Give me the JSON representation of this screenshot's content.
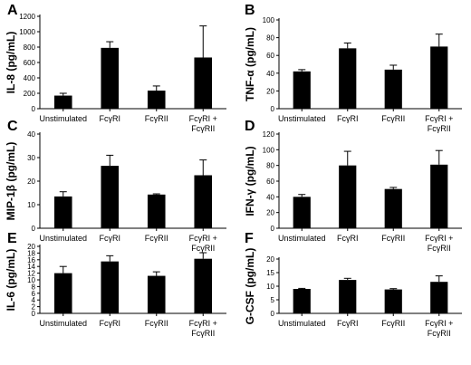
{
  "figure": {
    "panels": [
      "A",
      "B",
      "C",
      "D",
      "E",
      "F"
    ]
  },
  "chart_data": [
    {
      "panel": "A",
      "type": "bar",
      "ylabel": "IL-8 (pg/mL)",
      "ylim": [
        0,
        1200
      ],
      "yticks": [
        0,
        200,
        400,
        600,
        800,
        1000,
        1200
      ],
      "categories": [
        "Unstimulated",
        "FcγRI",
        "FcγRII",
        "FcγRI +\nFcγRII"
      ],
      "values": [
        170,
        790,
        235,
        665
      ],
      "errors": [
        30,
        80,
        60,
        410
      ]
    },
    {
      "panel": "B",
      "type": "bar",
      "ylabel": "TNF-α (pg/mL)",
      "ylim": [
        0,
        100
      ],
      "yticks": [
        0,
        20,
        40,
        60,
        80,
        100
      ],
      "categories": [
        "Unstimulated",
        "FcγRI",
        "FcγRII",
        "FcγRI +\nFcγRII"
      ],
      "values": [
        42,
        68,
        44,
        70
      ],
      "errors": [
        2,
        6,
        5,
        14
      ]
    },
    {
      "panel": "C",
      "type": "bar",
      "ylabel": "MIP-1β (pg/mL)",
      "ylim": [
        0,
        40
      ],
      "yticks": [
        0,
        10,
        20,
        30,
        40
      ],
      "categories": [
        "Unstimulated",
        "FcγRI",
        "FcγRII",
        "FcγRI +\nFcγRII"
      ],
      "values": [
        13.5,
        26.5,
        14.3,
        22.5
      ],
      "errors": [
        2,
        4.5,
        0.3,
        6.5
      ]
    },
    {
      "panel": "D",
      "type": "bar",
      "ylabel": "IFN-γ (pg/mL)",
      "ylim": [
        0,
        120
      ],
      "yticks": [
        0,
        20,
        40,
        60,
        80,
        100,
        120
      ],
      "categories": [
        "Unstimulated",
        "FcγRI",
        "FcγRII",
        "FcγRI +\nFcγRII"
      ],
      "values": [
        40,
        80,
        50,
        81
      ],
      "errors": [
        3,
        18,
        2,
        18
      ]
    },
    {
      "panel": "E",
      "type": "bar",
      "ylabel": "IL-6  (pg/mL)",
      "ylim": [
        0,
        20
      ],
      "yticks": [
        0,
        2,
        4,
        6,
        8,
        10,
        12,
        14,
        16,
        18,
        20
      ],
      "categories": [
        "Unstimulated",
        "FcγRI",
        "FcγRII",
        "FcγRI +\nFcγRII"
      ],
      "values": [
        12,
        15.5,
        11.2,
        16.3
      ],
      "errors": [
        2,
        1.7,
        1.2,
        1.8
      ]
    },
    {
      "panel": "F",
      "type": "bar",
      "ylabel": "G-CSF (pg/mL)",
      "ylim": [
        0,
        20
      ],
      "yticks": [
        0,
        5,
        10,
        15,
        20
      ],
      "categories": [
        "Unstimulated",
        "FcγRI",
        "FcγRII",
        "FcγRI +\nFcγRII"
      ],
      "values": [
        9,
        12.3,
        8.8,
        11.6
      ],
      "errors": [
        0.2,
        0.6,
        0.3,
        2.2
      ]
    }
  ]
}
